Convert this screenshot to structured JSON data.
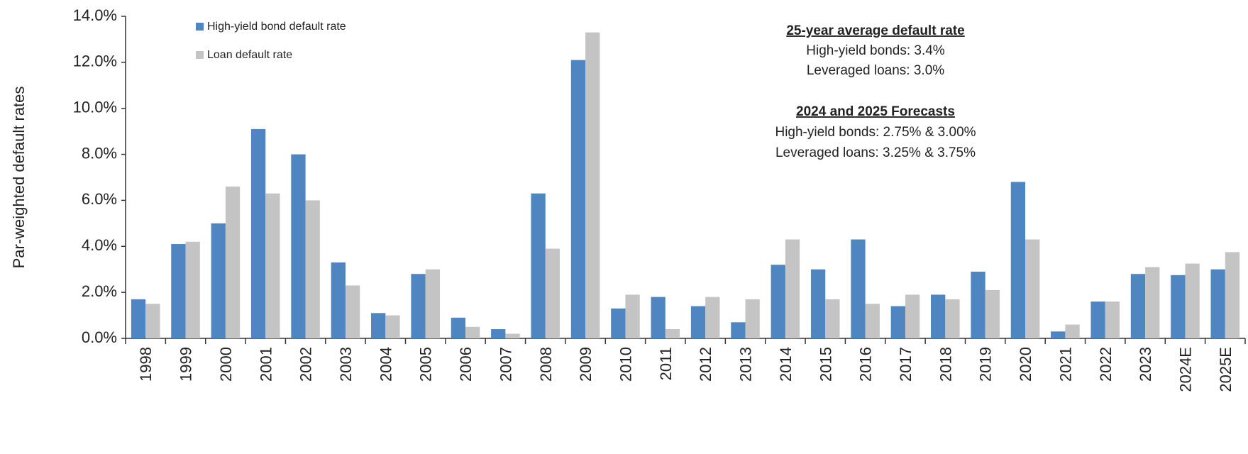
{
  "chart_data": {
    "type": "bar",
    "y_label": "Par-weighted default rates",
    "categories": [
      "1998",
      "1999",
      "2000",
      "2001",
      "2002",
      "2003",
      "2004",
      "2005",
      "2006",
      "2007",
      "2008",
      "2009",
      "2010",
      "2011",
      "2012",
      "2013",
      "2014",
      "2015",
      "2016",
      "2017",
      "2018",
      "2019",
      "2020",
      "2021",
      "2022",
      "2023",
      "2024E",
      "2025E"
    ],
    "series": [
      {
        "name": "High-yield bond default rate",
        "color": "#4f86c1",
        "values": [
          1.7,
          4.1,
          5.0,
          9.1,
          8.0,
          3.3,
          1.1,
          2.8,
          0.9,
          0.4,
          6.3,
          12.1,
          1.3,
          1.8,
          1.4,
          0.7,
          3.2,
          3.0,
          4.3,
          1.4,
          1.9,
          2.9,
          6.8,
          0.3,
          1.6,
          2.8,
          2.75,
          3.0
        ]
      },
      {
        "name": "Loan default rate",
        "color": "#c4c4c4",
        "values": [
          1.5,
          4.2,
          6.6,
          6.3,
          6.0,
          2.3,
          1.0,
          3.0,
          0.5,
          0.2,
          3.9,
          13.3,
          1.9,
          0.4,
          1.8,
          1.7,
          4.3,
          1.7,
          1.5,
          1.9,
          1.7,
          2.1,
          4.3,
          0.6,
          1.6,
          3.1,
          3.25,
          3.75
        ]
      }
    ],
    "ylim": [
      0,
      14
    ],
    "yticks": [
      {
        "value": 0,
        "label": "0.0%"
      },
      {
        "value": 2,
        "label": "2.0%"
      },
      {
        "value": 4,
        "label": "4.0%"
      },
      {
        "value": 6,
        "label": "6.0%"
      },
      {
        "value": 8,
        "label": "8.0%"
      },
      {
        "value": 10,
        "label": "10.0%"
      },
      {
        "value": 12,
        "label": "12.0%"
      },
      {
        "value": 14,
        "label": "14.0%"
      }
    ],
    "legend": "upper left",
    "annotations": [
      "25-year average default rate",
      "High-yield bonds: 3.4%",
      "Leveraged loans: 3.0%",
      "2024 and 2025 Forecasts",
      "High-yield bonds: 2.75%  &  3.00%",
      "Leveraged loans: 3.25%  &  3.75%"
    ]
  }
}
